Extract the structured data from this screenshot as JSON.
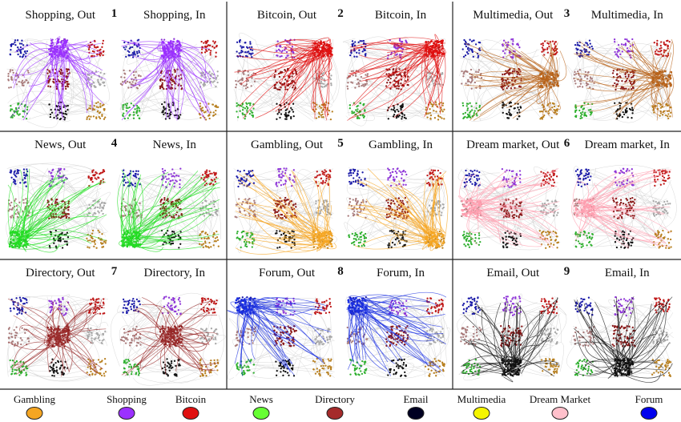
{
  "figure": {
    "panels": [
      {
        "number": "1",
        "category": "shopping",
        "color": "#9b30ff",
        "out_title": "Shopping, Out",
        "in_title": "Shopping, In",
        "out_anchor": "top-middle",
        "in_anchor": "top-middle"
      },
      {
        "number": "2",
        "category": "bitcoin",
        "color": "#e01010",
        "out_title": "Bitcoin, Out",
        "in_title": "Bitcoin, In",
        "out_anchor": "top-right",
        "in_anchor": "top-right"
      },
      {
        "number": "3",
        "category": "multimedia",
        "color": "#b8631a",
        "out_title": "Multimedia, Out",
        "in_title": "Multimedia, In",
        "out_anchor": "middle-right",
        "in_anchor": "middle-right"
      },
      {
        "number": "4",
        "category": "news",
        "color": "#22dd22",
        "out_title": "News, Out",
        "in_title": "News, In",
        "out_anchor": "bottom-left",
        "in_anchor": "bottom-left"
      },
      {
        "number": "5",
        "category": "gambling",
        "color": "#f5a623",
        "out_title": "Gambling, Out",
        "in_title": "Gambling, In",
        "out_anchor": "bottom-right",
        "in_anchor": "bottom-right"
      },
      {
        "number": "6",
        "category": "dream-market",
        "color": "#ff9fb0",
        "out_title": "Dream market, Out",
        "in_title": "Dream market, In",
        "out_anchor": "middle-left",
        "in_anchor": "middle-left"
      },
      {
        "number": "7",
        "category": "directory",
        "color": "#9b2d2d",
        "out_title": "Directory, Out",
        "in_title": "Directory, In",
        "out_anchor": "center",
        "in_anchor": "center"
      },
      {
        "number": "8",
        "category": "forum",
        "color": "#1a2fe0",
        "out_title": "Forum, Out",
        "in_title": "Forum, In",
        "out_anchor": "top-left",
        "in_anchor": "top-left"
      },
      {
        "number": "9",
        "category": "email",
        "color": "#111111",
        "out_title": "Email, Out",
        "in_title": "Email, In",
        "out_anchor": "bottom-middle",
        "in_anchor": "bottom-middle"
      }
    ],
    "clusters": [
      {
        "position": "top-left",
        "color": "#1a1aa8"
      },
      {
        "position": "top-middle",
        "color": "#8e35d8"
      },
      {
        "position": "top-right",
        "color": "#c01818"
      },
      {
        "position": "middle-left",
        "color": "#a87a7a"
      },
      {
        "position": "center",
        "color": "#8a1818"
      },
      {
        "position": "middle-right",
        "color": "#a8a8a8"
      },
      {
        "position": "bottom-left",
        "color": "#2fb02f"
      },
      {
        "position": "bottom-middle",
        "color": "#111111"
      },
      {
        "position": "bottom-right",
        "color": "#b88020"
      }
    ]
  },
  "legend": [
    {
      "label": "Gambling",
      "color": "#f5a623"
    },
    {
      "label": "Shopping",
      "color": "#9b30ff"
    },
    {
      "label": "Bitcoin",
      "color": "#e01010"
    },
    {
      "label": "News",
      "color": "#66ff33"
    },
    {
      "label": "Directory",
      "color": "#a52a2a"
    },
    {
      "label": "Email",
      "color": "#000022"
    },
    {
      "label": "Multimedia",
      "color": "#f5f500"
    },
    {
      "label": "Dream Market",
      "color": "#ffc0cb"
    },
    {
      "label": "Forum",
      "color": "#0000ee"
    }
  ]
}
